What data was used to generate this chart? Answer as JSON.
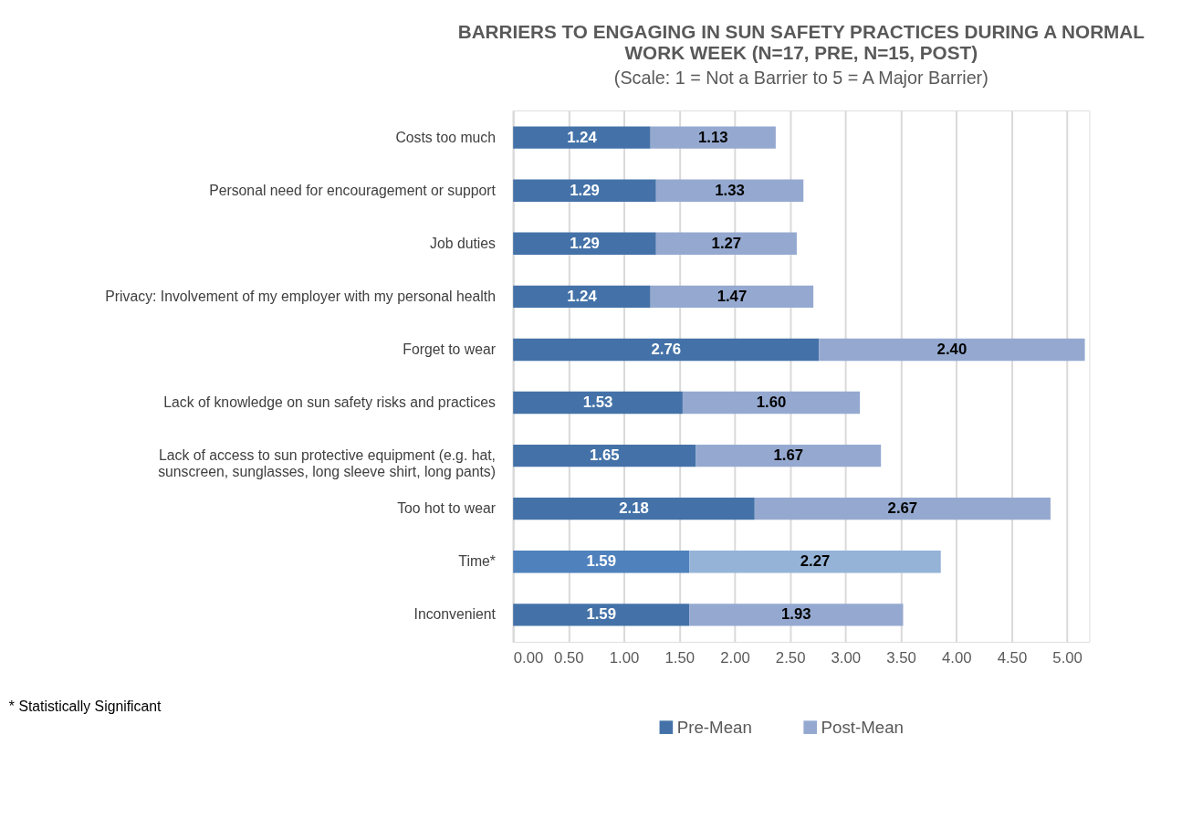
{
  "chart_data": {
    "type": "bar",
    "orientation": "horizontal",
    "stacked": true,
    "title": "BARRIERS TO ENGAGING IN SUN SAFETY PRACTICES DURING A NORMAL WORK WEEK (N=17, PRE, N=15, POST)",
    "subtitle": "(Scale: 1 = Not a Barrier to 5 = A Major Barrier)",
    "categories": [
      "Costs too much",
      "Personal need for encouragement or support",
      "Job duties",
      "Privacy: Involvement of my employer with my personal health",
      "Forget to wear",
      "Lack of knowledge on sun safety risks and practices",
      "Lack of access to sun protective equipment (e.g. hat, sunscreen, sunglasses, long sleeve shirt, long pants)",
      "Too hot to wear",
      "Time*",
      "Inconvenient"
    ],
    "series": [
      {
        "name": "Pre-Mean",
        "color": "#4472a8",
        "colors": [
          "#4472a8",
          "#4472a8",
          "#4472a8",
          "#4472a8",
          "#4472a8",
          "#4472a8",
          "#4472a8",
          "#4472a8",
          "#4f81bd",
          "#4472a8"
        ],
        "values": [
          1.24,
          1.29,
          1.29,
          1.24,
          2.76,
          1.53,
          1.65,
          2.18,
          1.59,
          1.59
        ],
        "value_labels": [
          "1.24",
          "1.29",
          "1.29",
          "1.24",
          "2.76",
          "1.53",
          "1.65",
          "2.18",
          "1.59",
          "1.59"
        ]
      },
      {
        "name": "Post-Mean",
        "color": "#95a9d0",
        "colors": [
          "#95a9d0",
          "#95a9d0",
          "#95a9d0",
          "#95a9d0",
          "#95a9d0",
          "#95a9d0",
          "#95a9d0",
          "#95a9d0",
          "#95b3d7",
          "#95a9d0"
        ],
        "values": [
          1.13,
          1.33,
          1.27,
          1.47,
          2.4,
          1.6,
          1.67,
          2.67,
          2.27,
          1.93
        ],
        "value_labels": [
          "1.13",
          "1.33",
          "1.27",
          "1.47",
          "2.40",
          "1.60",
          "1.67",
          "2.67",
          "2.27",
          "1.93"
        ]
      }
    ],
    "xlim": [
      0,
      5.2
    ],
    "xticks": [
      {
        "value": 0,
        "label": "0.00"
      },
      {
        "value": 0.5,
        "label": "0.50"
      },
      {
        "value": 1,
        "label": "1.00"
      },
      {
        "value": 1.5,
        "label": "1.50"
      },
      {
        "value": 2,
        "label": "2.00"
      },
      {
        "value": 2.5,
        "label": "2.50"
      },
      {
        "value": 3,
        "label": "3.00"
      },
      {
        "value": 3.5,
        "label": "3.50"
      },
      {
        "value": 4,
        "label": "4.00"
      },
      {
        "value": 4.5,
        "label": "4.50"
      },
      {
        "value": 5,
        "label": "5.00"
      }
    ],
    "grid": "x",
    "legend": "bottom",
    "annotations": [
      "* Statistically Significant"
    ]
  }
}
